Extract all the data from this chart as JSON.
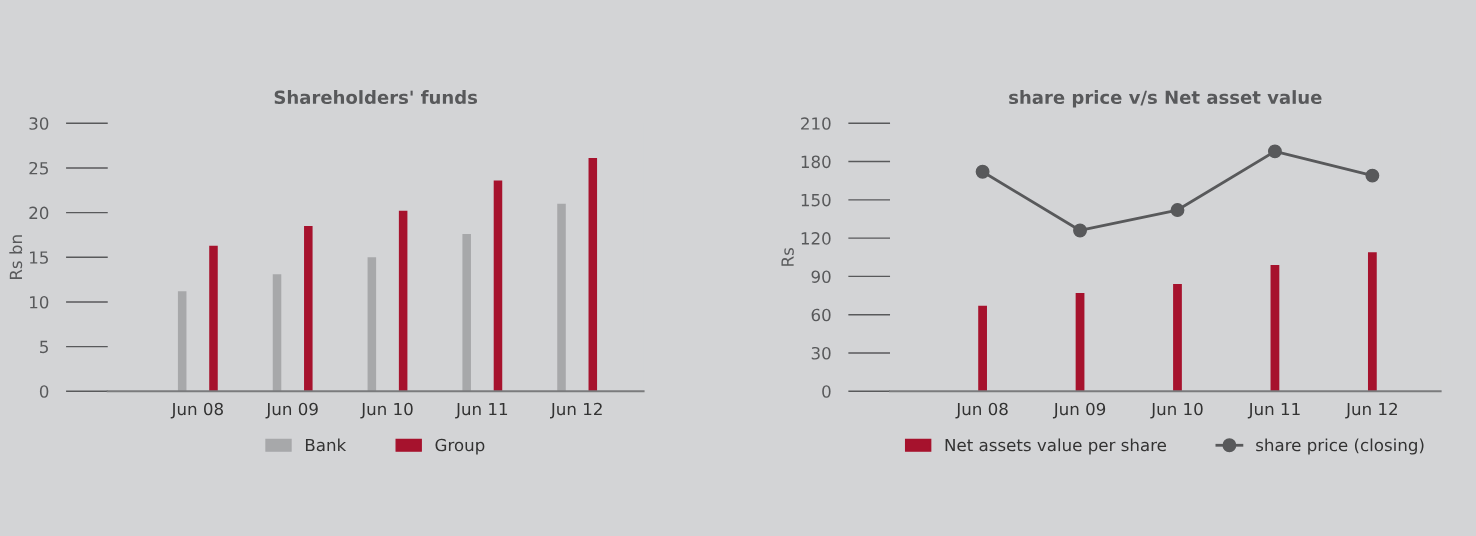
{
  "chart_data": [
    {
      "type": "bar",
      "title": "Shareholders' funds",
      "ylabel": "Rs bn",
      "categories": [
        "Jun 08",
        "Jun 09",
        "Jun 10",
        "Jun 11",
        "Jun 12"
      ],
      "ylim": [
        0,
        30
      ],
      "yticks": [
        0,
        5,
        10,
        15,
        20,
        25,
        30
      ],
      "grid": false,
      "legend": "bottom",
      "series": [
        {
          "name": "Bank",
          "color": "#a7a8aa",
          "values": [
            11.2,
            13.1,
            15.0,
            17.6,
            21.0
          ]
        },
        {
          "name": "Group",
          "color": "#a6122d",
          "values": [
            16.3,
            18.5,
            20.2,
            23.6,
            26.1
          ]
        }
      ]
    },
    {
      "type": "bar",
      "title": "share price v/s Net asset value",
      "ylabel": "Rs",
      "categories": [
        "Jun 08",
        "Jun 09",
        "Jun 10",
        "Jun 11",
        "Jun 12"
      ],
      "ylim": [
        0,
        210
      ],
      "yticks": [
        0,
        30,
        60,
        90,
        120,
        150,
        180,
        210
      ],
      "grid": false,
      "legend": "bottom",
      "series": [
        {
          "name": "Net assets value per share",
          "color": "#a6122d",
          "type": "bar",
          "values": [
            67,
            77,
            84,
            99,
            109
          ]
        },
        {
          "name": "share price (closing)",
          "color": "#58595b",
          "type": "line",
          "marker": "circle",
          "line_style": "solid",
          "values": [
            172,
            126,
            142,
            188,
            169
          ]
        }
      ]
    }
  ]
}
